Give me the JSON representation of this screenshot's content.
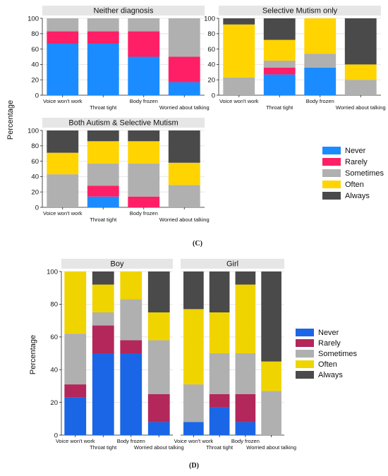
{
  "figure_c": {
    "label": "(C)",
    "ylabel": "Percentage",
    "legend": [
      "Never",
      "Rarely",
      "Sometimes",
      "Often",
      "Always"
    ]
  },
  "figure_d": {
    "label": "(D)",
    "ylabel": "Percentage",
    "legend": [
      "Never",
      "Rarely",
      "Sometimes",
      "Often",
      "Always"
    ]
  },
  "colors": {
    "c": [
      "#1a8cff",
      "#ff1f66",
      "#b0b0b0",
      "#ffd400",
      "#4a4a4a"
    ],
    "d": [
      "#1a66e6",
      "#b3275a",
      "#b0b0b0",
      "#f0d400",
      "#4a4a4a"
    ],
    "panel_header": "#e6e6e6",
    "grid": "#e0e0e0"
  },
  "chart_data": [
    {
      "type": "bar",
      "stacked": true,
      "title": "Neither diagnosis",
      "categories": [
        "Voice won't work",
        "Throat tight",
        "Body frozen",
        "Worried about talking"
      ],
      "ylim": [
        0,
        100
      ],
      "yticks": [
        0,
        20,
        40,
        60,
        80,
        100
      ],
      "series": [
        {
          "name": "Never",
          "values": [
            67,
            67,
            50,
            17
          ]
        },
        {
          "name": "Rarely",
          "values": [
            16,
            16,
            33,
            33
          ]
        },
        {
          "name": "Sometimes",
          "values": [
            17,
            17,
            17,
            50
          ]
        },
        {
          "name": "Often",
          "values": [
            0,
            0,
            0,
            0
          ]
        },
        {
          "name": "Always",
          "values": [
            0,
            0,
            0,
            0
          ]
        }
      ]
    },
    {
      "type": "bar",
      "stacked": true,
      "title": "Selective Mutism only",
      "categories": [
        "Voice won't work",
        "Throat tight",
        "Body frozen",
        "Worried about talking"
      ],
      "ylim": [
        0,
        100
      ],
      "yticks": [
        0,
        20,
        40,
        60,
        80,
        100
      ],
      "series": [
        {
          "name": "Never",
          "values": [
            0,
            27,
            36,
            0
          ]
        },
        {
          "name": "Rarely",
          "values": [
            0,
            9,
            0,
            0
          ]
        },
        {
          "name": "Sometimes",
          "values": [
            23,
            9,
            18,
            20
          ]
        },
        {
          "name": "Often",
          "values": [
            69,
            27,
            46,
            20
          ]
        },
        {
          "name": "Always",
          "values": [
            8,
            28,
            0,
            60
          ]
        }
      ]
    },
    {
      "type": "bar",
      "stacked": true,
      "title": "Both Autism & Selective Mutism",
      "categories": [
        "Voice won't work",
        "Throat tight",
        "Body frozen",
        "Worried about talking"
      ],
      "ylim": [
        0,
        100
      ],
      "yticks": [
        0,
        20,
        40,
        60,
        80,
        100
      ],
      "series": [
        {
          "name": "Never",
          "values": [
            0,
            14,
            0,
            0
          ]
        },
        {
          "name": "Rarely",
          "values": [
            0,
            14,
            14,
            0
          ]
        },
        {
          "name": "Sometimes",
          "values": [
            43,
            29,
            43,
            29
          ]
        },
        {
          "name": "Often",
          "values": [
            28,
            29,
            29,
            29
          ]
        },
        {
          "name": "Always",
          "values": [
            29,
            14,
            14,
            42
          ]
        }
      ]
    },
    {
      "type": "bar",
      "stacked": true,
      "title": "Boy",
      "categories": [
        "Voice won't work",
        "Throat tight",
        "Body frozen",
        "Worried about talking"
      ],
      "ylim": [
        0,
        100
      ],
      "yticks": [
        0,
        20,
        40,
        60,
        80,
        100
      ],
      "series": [
        {
          "name": "Never",
          "values": [
            23,
            50,
            50,
            8
          ]
        },
        {
          "name": "Rarely",
          "values": [
            8,
            17,
            8,
            17
          ]
        },
        {
          "name": "Sometimes",
          "values": [
            31,
            8,
            25,
            33
          ]
        },
        {
          "name": "Often",
          "values": [
            38,
            17,
            17,
            17
          ]
        },
        {
          "name": "Always",
          "values": [
            0,
            8,
            0,
            25
          ]
        }
      ]
    },
    {
      "type": "bar",
      "stacked": true,
      "title": "Girl",
      "categories": [
        "Voice won't work",
        "Throat tight",
        "Body frozen",
        "Worried about talking"
      ],
      "ylim": [
        0,
        100
      ],
      "yticks": [
        0,
        20,
        40,
        60,
        80,
        100
      ],
      "series": [
        {
          "name": "Never",
          "values": [
            8,
            17,
            8,
            0
          ]
        },
        {
          "name": "Rarely",
          "values": [
            0,
            8,
            17,
            0
          ]
        },
        {
          "name": "Sometimes",
          "values": [
            23,
            25,
            25,
            27
          ]
        },
        {
          "name": "Often",
          "values": [
            46,
            25,
            42,
            18
          ]
        },
        {
          "name": "Always",
          "values": [
            23,
            25,
            8,
            55
          ]
        }
      ]
    }
  ]
}
